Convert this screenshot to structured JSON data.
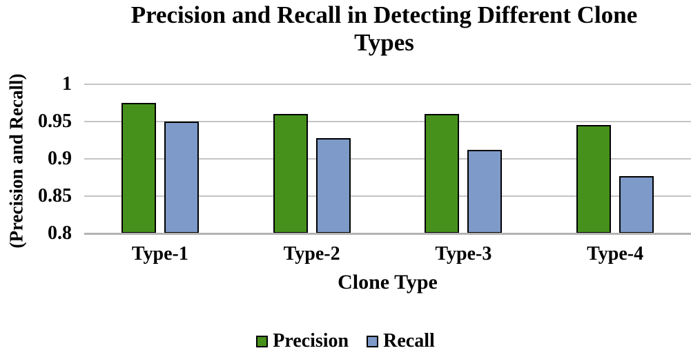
{
  "title": "Precision and Recall in Detecting Different Clone\nTypes",
  "chart_data": {
    "type": "bar",
    "title": "Precision and Recall in Detecting Different Clone Types",
    "xlabel": "Clone Type",
    "ylabel": "(Precision and Recall)",
    "categories": [
      "Type-1",
      "Type-2",
      "Type-3",
      "Type-4"
    ],
    "series": [
      {
        "name": "Precision",
        "color": "#46911C",
        "values": [
          0.975,
          0.96,
          0.96,
          0.945
        ]
      },
      {
        "name": "Recall",
        "color": "#7D9AC9",
        "values": [
          0.95,
          0.928,
          0.912,
          0.877
        ]
      }
    ],
    "ylim": [
      0.8,
      1.0
    ],
    "yticks": [
      1,
      0.95,
      0.9,
      0.85,
      0.8
    ],
    "ytick_labels": [
      "1",
      "0.95",
      "0.9",
      "0.85",
      "0.8"
    ],
    "grid": true,
    "legend_position": "bottom",
    "colors": {
      "gridline": "#C4C4C4",
      "axis_line": "#B3B3B3",
      "bar_border": "#000000",
      "text": "#000000"
    }
  }
}
